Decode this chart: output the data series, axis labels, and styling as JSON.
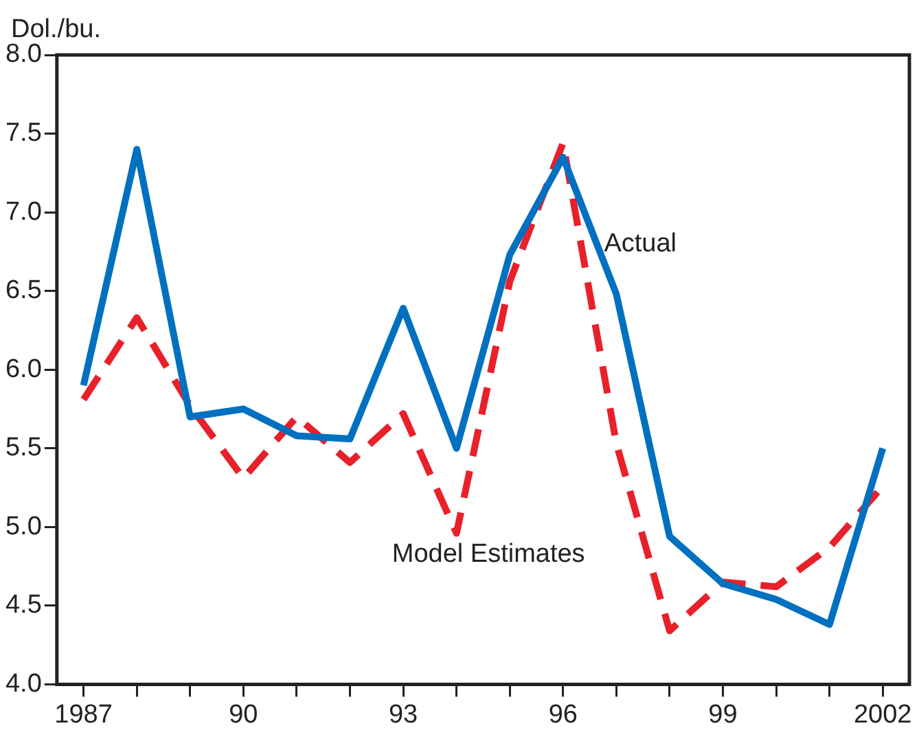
{
  "chart_data": {
    "type": "line",
    "ylabel": "Dol./bu.",
    "categories": [
      "1987",
      null,
      null,
      "90",
      null,
      null,
      "93",
      null,
      null,
      "96",
      null,
      null,
      "99",
      null,
      null,
      "2002"
    ],
    "series": [
      {
        "name": "Actual",
        "color": "#0070c0",
        "line_style": "solid",
        "values": [
          5.9,
          7.4,
          5.7,
          5.75,
          5.58,
          5.56,
          6.39,
          5.5,
          6.73,
          7.35,
          6.48,
          4.94,
          4.64,
          4.54,
          4.38,
          5.5
        ]
      },
      {
        "name": "Model Estimates",
        "color": "#e8202a",
        "line_style": "dashed",
        "values": [
          5.81,
          6.33,
          5.77,
          5.31,
          5.7,
          5.41,
          5.72,
          4.96,
          6.56,
          7.44,
          5.53,
          4.34,
          4.65,
          4.62,
          4.87,
          5.26
        ]
      }
    ],
    "ylim": [
      4.0,
      8.0
    ],
    "yticks": [
      {
        "value": 4,
        "label": "4.0"
      },
      {
        "value": 4.5,
        "label": "4.5"
      },
      {
        "value": 5,
        "label": "5.0"
      },
      {
        "value": 5.5,
        "label": "5.5"
      },
      {
        "value": 6,
        "label": "6.0"
      },
      {
        "value": 6.5,
        "label": "6.5"
      },
      {
        "value": 7,
        "label": "7.0"
      },
      {
        "value": 7.5,
        "label": "7.5"
      },
      {
        "value": 8,
        "label": "8.0"
      }
    ],
    "grid": false,
    "legend": false,
    "marker": "none"
  }
}
